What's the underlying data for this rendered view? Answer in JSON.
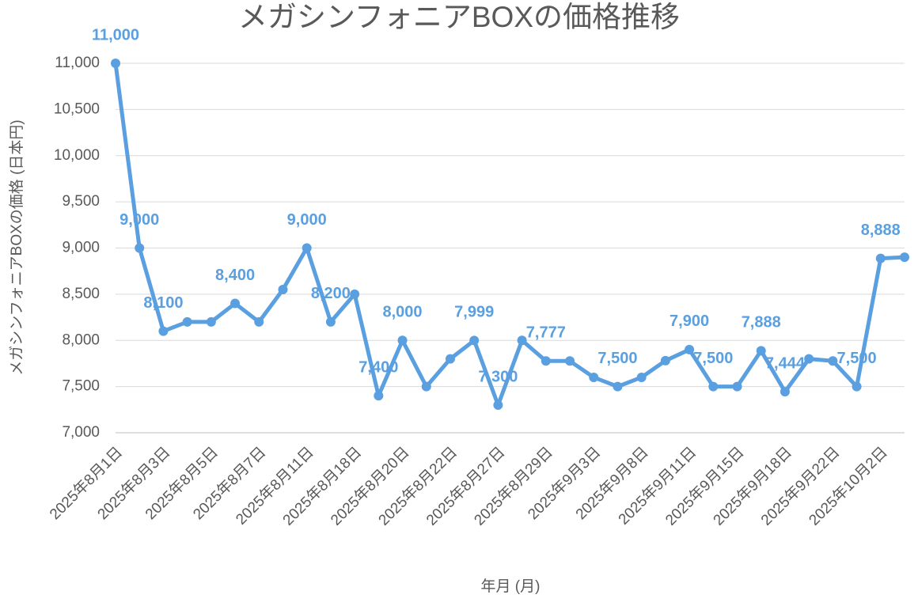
{
  "chart_data": {
    "type": "line",
    "title": "メガシンフォニアBOXの価格推移",
    "x_label": "年月 (月)",
    "y_label": "メガシンフォニアBOXの価格 (日本円)",
    "categories": [
      "2025年8月1日",
      null,
      "2025年8月3日",
      null,
      "2025年8月5日",
      null,
      "2025年8月7日",
      null,
      "2025年8月11日",
      null,
      "2025年8月18日",
      null,
      "2025年8月20日",
      null,
      "2025年8月22日",
      null,
      "2025年8月27日",
      null,
      "2025年8月29日",
      null,
      "2025年9月3日",
      null,
      "2025年9月8日",
      null,
      "2025年9月11日",
      null,
      "2025年9月15日",
      null,
      "2025年9月18日",
      null,
      "2025年9月22日",
      null,
      "2025年10月2日",
      null
    ],
    "values": [
      11000,
      9000,
      8100,
      8200,
      8200,
      8400,
      8200,
      8550,
      9000,
      8200,
      8500,
      7400,
      8000,
      7500,
      7800,
      7999,
      7300,
      8000,
      7777,
      7777,
      7600,
      7500,
      7600,
      7780,
      7900,
      7500,
      7500,
      7888,
      7444,
      7800,
      7777,
      7500,
      8888,
      8900
    ],
    "value_labels": [
      "11,000",
      "9,000",
      "8,100",
      null,
      null,
      "8,400",
      null,
      null,
      "9,000",
      "8,200",
      null,
      "7,400",
      "8,000",
      null,
      null,
      "7,999",
      "7,300",
      null,
      "7,777",
      null,
      null,
      "7,500",
      null,
      null,
      "7,900",
      "7,500",
      null,
      "7,888",
      "7,444",
      null,
      null,
      "7,500",
      "8,888",
      null
    ],
    "color": "#5a9fe0",
    "ylim": [
      7000,
      11000
    ],
    "yticks": [
      {
        "value": 7000,
        "label": "7,000"
      },
      {
        "value": 7500,
        "label": "7,500"
      },
      {
        "value": 8000,
        "label": "8,000"
      },
      {
        "value": 8500,
        "label": "8,500"
      },
      {
        "value": 9000,
        "label": "9,000"
      },
      {
        "value": 9500,
        "label": "9,500"
      },
      {
        "value": 10000,
        "label": "10,000"
      },
      {
        "value": 10500,
        "label": "10,500"
      },
      {
        "value": 11000,
        "label": "11,000"
      }
    ],
    "grid": true
  }
}
